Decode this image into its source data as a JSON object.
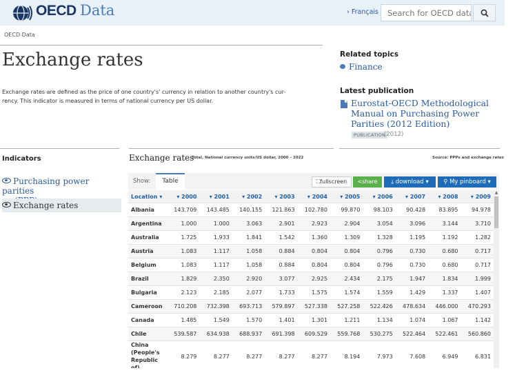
{
  "header": {
    "brand": "OECD",
    "brand_suffix": "Data",
    "language_link": "› Français",
    "search_placeholder": "Search for OECD data"
  },
  "breadcrumb": "OECD Data",
  "page": {
    "title": "Exchange rates",
    "description": "Exchange rates are defined as the price of one country's' currency in relation to another country's cur-rency. This indicator is measured in terms of national currency per US dollar."
  },
  "related_topics": {
    "heading": "Related topics",
    "items": [
      "Finance"
    ]
  },
  "latest_publication": {
    "heading": "Latest publication",
    "title": "Eurostat-OECD Methodological Manual on Purchasing Power Parities (2012 Edition)",
    "badge": "PUBLICATION",
    "year": "(2012)"
  },
  "indicators": {
    "heading": "Indicators",
    "items": [
      {
        "label_line1": "Purchasing power parities",
        "label_line2": "(PPP)"
      },
      {
        "label": "Exchange rates"
      }
    ]
  },
  "chart": {
    "title": "Exchange rates",
    "subtitle": "Total, National currency units/US dollar, 2000 – 2022",
    "source": "Source: PPPs and exchange rates"
  },
  "toolbar": {
    "show_label": "Show:",
    "tab": "Table",
    "fullscreen": "fullscreen",
    "share": "share",
    "download": "download",
    "pinboard": "My pinboard"
  },
  "table": {
    "location_header": "Location",
    "years": [
      "2000",
      "2001",
      "2002",
      "2003",
      "2004",
      "2005",
      "2006",
      "2007",
      "2008",
      "2009"
    ],
    "rows": [
      {
        "location": "Albania",
        "values": [
          "143.709",
          "143.485",
          "140.155",
          "121.863",
          "102.780",
          "99.870",
          "98.103",
          "90.428",
          "83.895",
          "94.978"
        ]
      },
      {
        "location": "Argentina",
        "values": [
          "1.000",
          "1.000",
          "3.063",
          "2.901",
          "2.923",
          "2.904",
          "3.054",
          "3.096",
          "3.144",
          "3.710"
        ]
      },
      {
        "location": "Australia",
        "values": [
          "1.725",
          "1.933",
          "1.841",
          "1.542",
          "1.360",
          "1.309",
          "1.328",
          "1.195",
          "1.192",
          "1.282"
        ]
      },
      {
        "location": "Austria",
        "values": [
          "1.083",
          "1.117",
          "1.058",
          "0.884",
          "0.804",
          "0.804",
          "0.796",
          "0.730",
          "0.680",
          "0.717"
        ]
      },
      {
        "location": "Belgium",
        "values": [
          "1.083",
          "1.117",
          "1.058",
          "0.884",
          "0.804",
          "0.804",
          "0.796",
          "0.730",
          "0.680",
          "0.717"
        ]
      },
      {
        "location": "Brazil",
        "values": [
          "1.829",
          "2.350",
          "2.920",
          "3.077",
          "2.925",
          "2.434",
          "2.175",
          "1.947",
          "1.834",
          "1.999"
        ]
      },
      {
        "location": "Bulgaria",
        "values": [
          "2.123",
          "2.185",
          "2.077",
          "1.733",
          "1.575",
          "1.574",
          "1.559",
          "1.429",
          "1.337",
          "1.407"
        ]
      },
      {
        "location": "Cameroon",
        "values": [
          "710.208",
          "732.398",
          "693.713",
          "579.897",
          "527.338",
          "527.258",
          "522.426",
          "478.634",
          "446.000",
          "470.293"
        ]
      },
      {
        "location": "Canada",
        "values": [
          "1.485",
          "1.549",
          "1.570",
          "1.401",
          "1.301",
          "1.211",
          "1.134",
          "1.074",
          "1.067",
          "1.142"
        ]
      },
      {
        "location": "Chile",
        "values": [
          "539.587",
          "634.938",
          "688.937",
          "691.398",
          "609.529",
          "559.768",
          "530.275",
          "522.464",
          "522.461",
          "560.860"
        ]
      },
      {
        "location": "China (People's Republic of)",
        "values": [
          "8.279",
          "8.277",
          "8.277",
          "8.277",
          "8.277",
          "8.194",
          "7.973",
          "7.608",
          "6.949",
          "6.831"
        ]
      }
    ]
  },
  "colors": {
    "brand": "#1a3663",
    "link": "#2a5aa0",
    "share": "#5ab04a",
    "action": "#1e6bb8"
  }
}
